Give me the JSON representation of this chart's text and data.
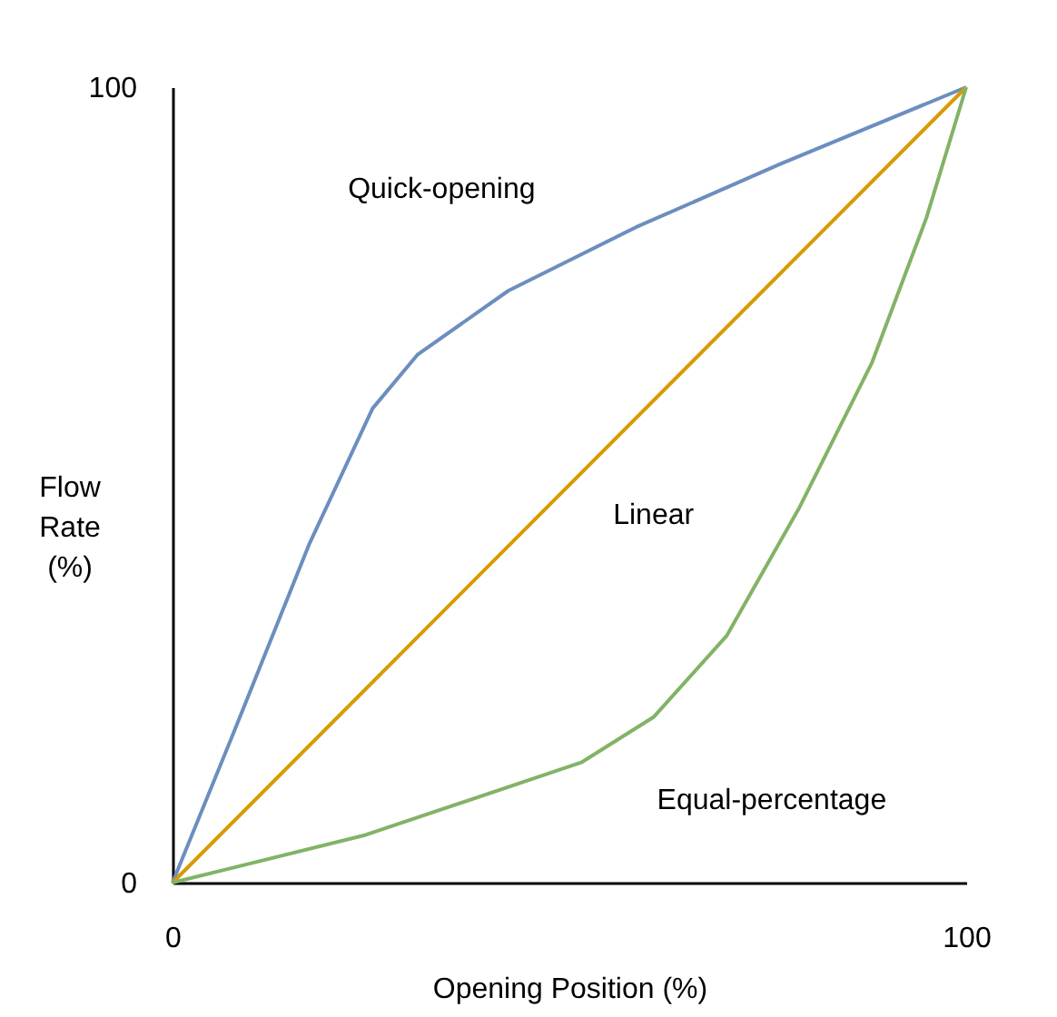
{
  "chart_data": {
    "type": "line",
    "xlabel": "Opening Position (%)",
    "ylabel": "Flow\nRate\n(%)",
    "xlim": [
      0,
      100
    ],
    "ylim": [
      0,
      100
    ],
    "xticks": [
      0,
      100
    ],
    "yticks": [
      0,
      100
    ],
    "grid": false,
    "series": [
      {
        "name": "Quick-opening",
        "color": "#6c8ebf",
        "x": [
          0,
          8,
          17.2,
          25.2,
          30.9,
          42.3,
          58.4,
          76.7,
          100
        ],
        "values": [
          0,
          19.6,
          42.5,
          59.6,
          66.4,
          74.4,
          82.4,
          90.4,
          100
        ]
      },
      {
        "name": "Linear",
        "color": "#d79b00",
        "x": [
          0,
          100
        ],
        "values": [
          0,
          100
        ]
      },
      {
        "name": "Equal-percentage",
        "color": "#82b366",
        "x": [
          0,
          24,
          51.5,
          60.6,
          69.8,
          78.9,
          88.1,
          95,
          100
        ],
        "values": [
          0,
          5.9,
          15.1,
          20.8,
          31,
          47,
          65.3,
          83.6,
          100
        ]
      }
    ]
  }
}
